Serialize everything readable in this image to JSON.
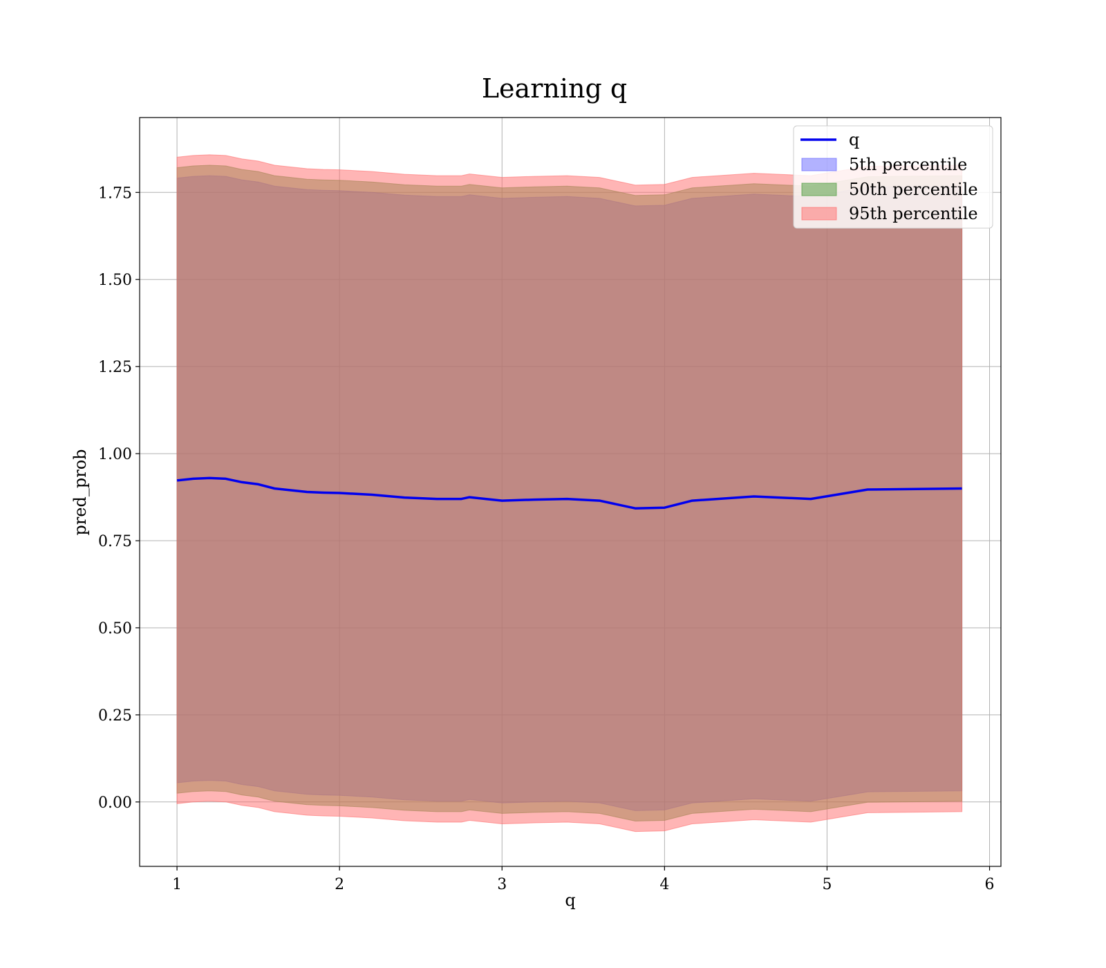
{
  "chart_data": {
    "type": "area",
    "title": "Learning q",
    "xlabel": "q",
    "ylabel": "pred_prob",
    "xlim": [
      0.77,
      6.07
    ],
    "ylim": [
      -0.185,
      1.965
    ],
    "xticks": [
      1,
      2,
      3,
      4,
      5,
      6
    ],
    "yticks": [
      0.0,
      0.25,
      0.5,
      0.75,
      1.0,
      1.25,
      1.5,
      1.75
    ],
    "ytick_labels": [
      "0.00",
      "0.25",
      "0.50",
      "0.75",
      "1.00",
      "1.25",
      "1.50",
      "1.75"
    ],
    "grid": true,
    "legend_position": "top-right",
    "x": [
      1.0,
      1.1,
      1.2,
      1.3,
      1.4,
      1.5,
      1.6,
      1.7,
      1.8,
      1.9,
      2.0,
      2.2,
      2.4,
      2.6,
      2.75,
      2.8,
      3.0,
      3.2,
      3.4,
      3.6,
      3.82,
      4.0,
      4.17,
      4.55,
      4.9,
      5.25,
      5.83
    ],
    "median": [
      0.923,
      0.928,
      0.93,
      0.928,
      0.918,
      0.912,
      0.9,
      0.895,
      0.89,
      0.888,
      0.887,
      0.882,
      0.874,
      0.87,
      0.87,
      0.875,
      0.865,
      0.868,
      0.87,
      0.865,
      0.843,
      0.845,
      0.865,
      0.877,
      0.87,
      0.897,
      0.9
    ],
    "bands": [
      {
        "name": "5th percentile",
        "color": "#6666ff",
        "opacity": 0.5,
        "half_width": 0.868
      },
      {
        "name": "50th percentile",
        "color": "#4a9a3a",
        "opacity": 0.5,
        "half_width": 0.898
      },
      {
        "name": "95th percentile",
        "color": "#ff6b6b",
        "opacity": 0.5,
        "half_width": 0.928
      }
    ],
    "series": [
      {
        "name": "q",
        "color": "#0000ee",
        "kind": "line"
      }
    ]
  }
}
